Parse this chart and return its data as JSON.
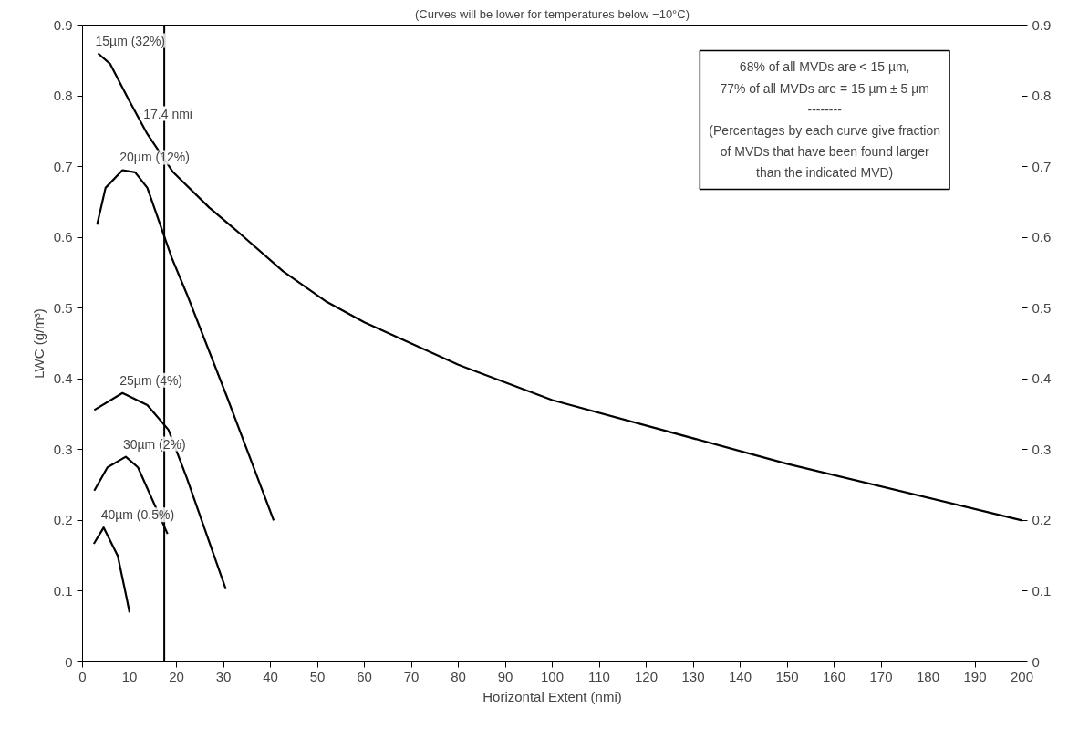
{
  "chart_data": {
    "type": "line",
    "title": "(Curves will be lower for temperatures below −10°C)",
    "xlabel": "Horizontal Extent (nmi)",
    "ylabel": "LWC (g/m³)",
    "xlim": [
      0,
      200
    ],
    "xticks": [
      0,
      10,
      20,
      30,
      40,
      50,
      60,
      70,
      80,
      90,
      100,
      110,
      120,
      130,
      140,
      150,
      160,
      170,
      180,
      190,
      200
    ],
    "ylim": [
      0,
      0.9
    ],
    "yticks": [
      0,
      0.1,
      0.2,
      0.3,
      0.4,
      0.5,
      0.6,
      0.7,
      0.8,
      0.9
    ],
    "y2lim": [
      0,
      0.9
    ],
    "y2ticks": [
      0,
      0.1,
      0.2,
      0.3,
      0.4,
      0.5,
      0.6,
      0.7,
      0.8,
      0.9
    ],
    "grid": false,
    "marker": "none",
    "line_style": "solid",
    "series": [
      {
        "name": "15µm (32%)",
        "color": "#000000",
        "x": [
          3.3,
          5.9,
          9.8,
          13.8,
          19.3,
          27,
          33.4,
          42.7,
          51.7,
          60,
          80,
          100,
          150,
          200
        ],
        "values": [
          0.86,
          0.845,
          0.795,
          0.746,
          0.692,
          0.642,
          0.606,
          0.552,
          0.51,
          0.48,
          0.42,
          0.37,
          0.28,
          0.2
        ]
      },
      {
        "name": "20µm (12%)",
        "color": "#000000",
        "x": [
          3.1,
          4.9,
          8.5,
          11.2,
          13.8,
          19,
          22.2,
          30.9,
          40.7
        ],
        "values": [
          0.618,
          0.67,
          0.695,
          0.692,
          0.67,
          0.571,
          0.52,
          0.372,
          0.2
        ]
      },
      {
        "name": "25µm (4%)",
        "color": "#000000",
        "x": [
          2.5,
          8.5,
          13.8,
          18.3,
          22.2,
          30.5
        ],
        "values": [
          0.356,
          0.38,
          0.363,
          0.328,
          0.26,
          0.103
        ]
      },
      {
        "name": "30µm (2%)",
        "color": "#000000",
        "x": [
          2.5,
          5.3,
          9.2,
          11.8,
          18.1
        ],
        "values": [
          0.242,
          0.275,
          0.29,
          0.275,
          0.181
        ]
      },
      {
        "name": "40µm (0.5%)",
        "color": "#000000",
        "x": [
          2.4,
          4.5,
          7.5,
          9.4,
          10
        ],
        "values": [
          0.167,
          0.19,
          0.15,
          0.09,
          0.07
        ]
      }
    ],
    "ref_lines": [
      {
        "axis": "x",
        "value": 17.4,
        "label": "17.4 nmi",
        "color": "#000000"
      }
    ],
    "annotations": [
      "68% of all MVDs are < 15 µm,",
      "77% of all MVDs are = 15 µm ± 5 µm",
      "--------",
      "(Percentages by each curve give fraction",
      "of MVDs that have been found larger",
      "than the indicated MVD)"
    ]
  }
}
